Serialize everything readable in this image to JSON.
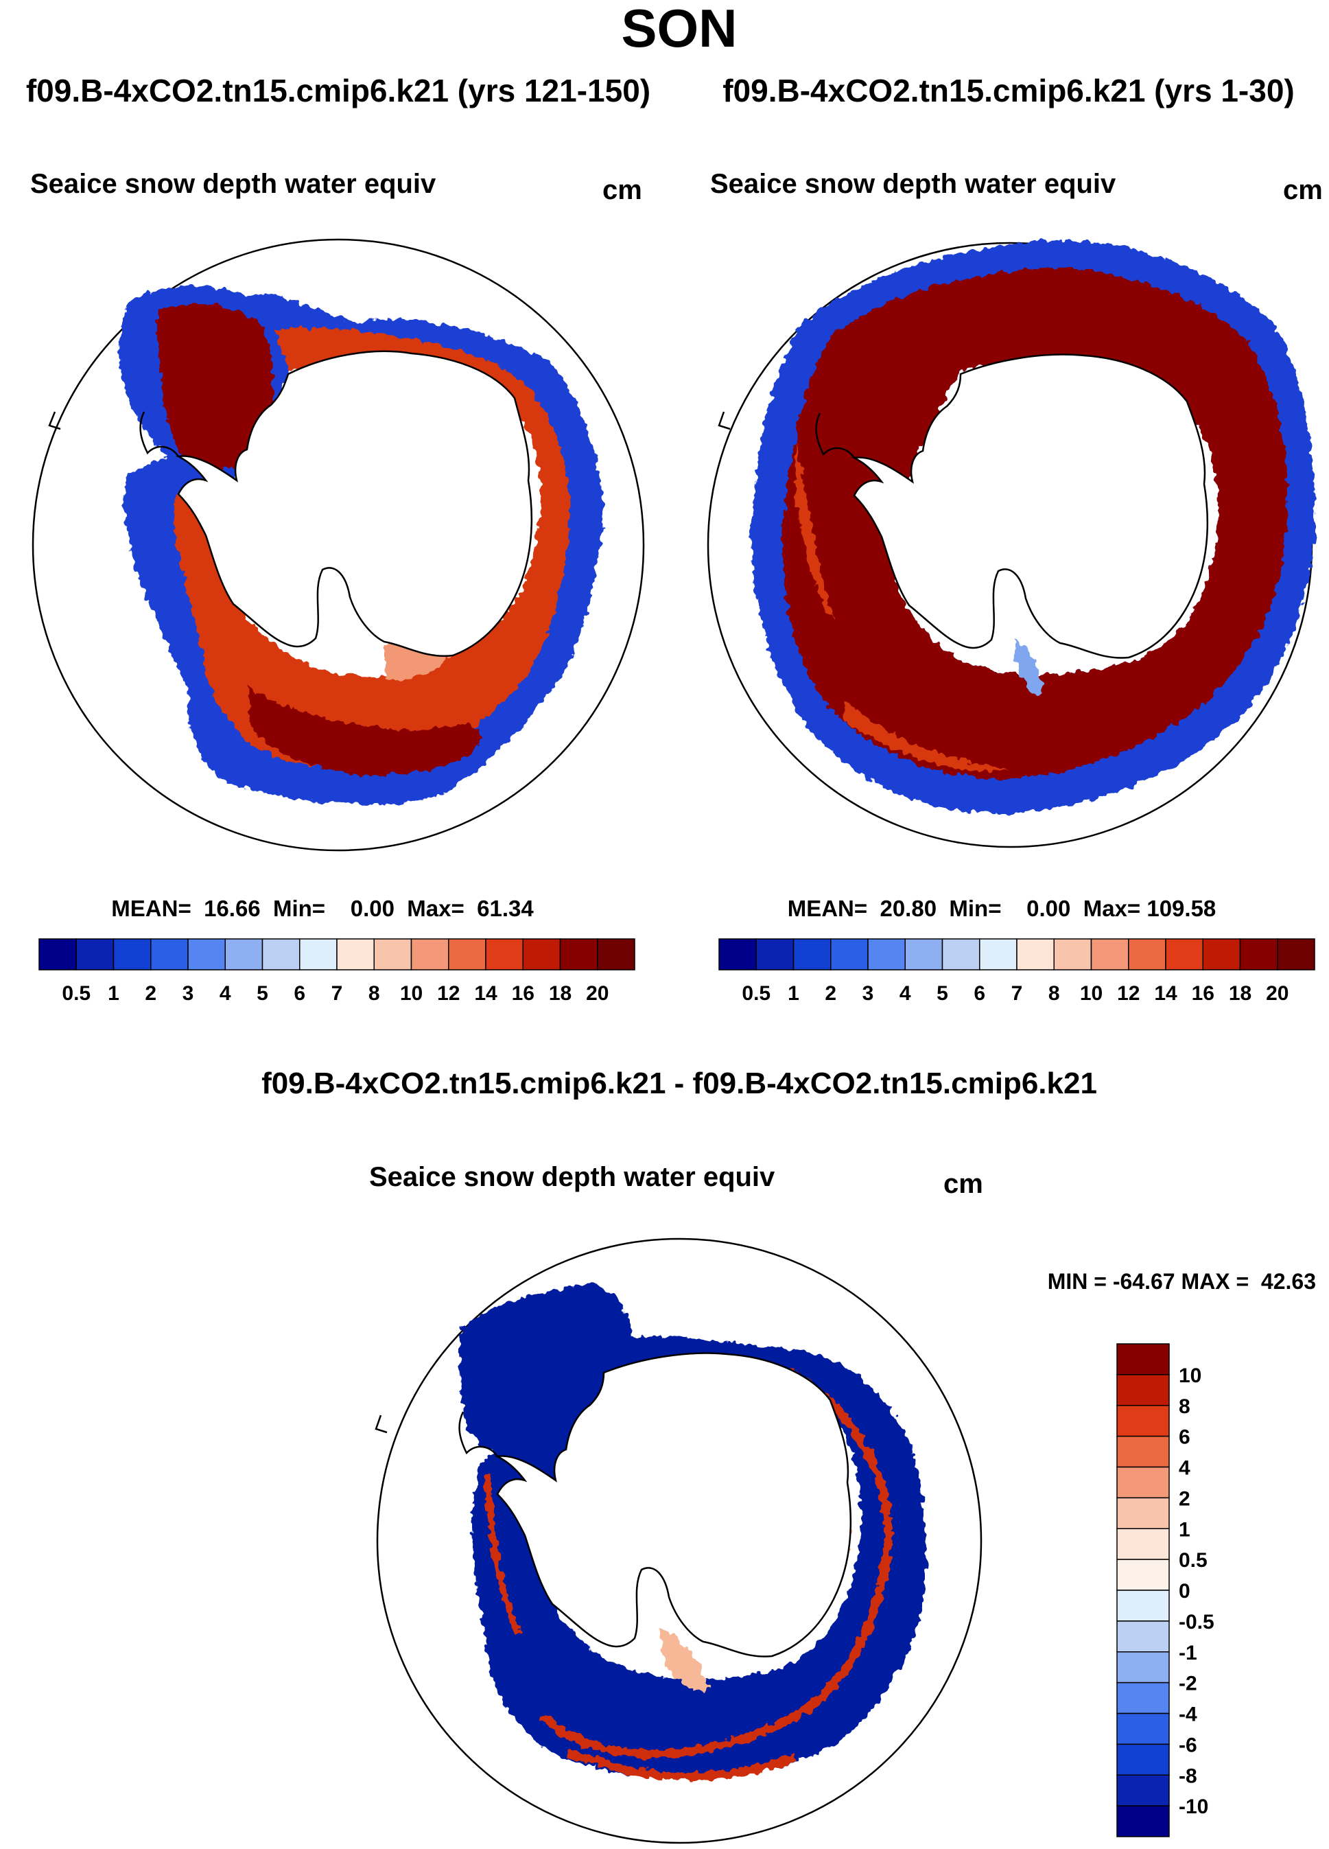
{
  "page": {
    "season": "SON",
    "diff_title": "f09.B-4xCO2.tn15.cmip6.k21 - f09.B-4xCO2.tn15.cmip6.k21"
  },
  "panels": [
    {
      "case_title": "f09.B-4xCO2.tn15.cmip6.k21 (yrs 121-150)",
      "variable": "Seaice snow depth water equiv",
      "units": "cm",
      "mean_label": "MEAN=  16.66  Min=    0.00  Max=  61.34",
      "stats": {
        "mean": 16.66,
        "min": 0.0,
        "max": 61.34
      }
    },
    {
      "case_title": "f09.B-4xCO2.tn15.cmip6.k21 (yrs 1-30)",
      "variable": "Seaice snow depth water equiv",
      "units": "cm",
      "mean_label": "MEAN=  20.80  Min=    0.00  Max= 109.58",
      "stats": {
        "mean": 20.8,
        "min": 0.0,
        "max": 109.58
      }
    }
  ],
  "difference": {
    "variable": "Seaice snow depth water equiv",
    "units": "cm",
    "minmax_label": "MIN = -64.67 MAX =  42.63",
    "stats": {
      "min": -64.67,
      "max": 42.63
    }
  },
  "colorbars": {
    "abs_labels": [
      "0.5",
      "1",
      "2",
      "3",
      "4",
      "5",
      "6",
      "7",
      "8",
      "10",
      "12",
      "14",
      "16",
      "18",
      "20"
    ],
    "abs_colors": [
      "#00008a",
      "#0a23b0",
      "#1240d2",
      "#2b5fe6",
      "#5585f0",
      "#8eaff2",
      "#bcd0f4",
      "#dfeefb",
      "#fde6d8",
      "#f8c4ac",
      "#f3997a",
      "#ec6a41",
      "#e03c17",
      "#bf1b04",
      "#860000",
      "#6e0000"
    ],
    "diff_labels": [
      "10",
      "8",
      "6",
      "4",
      "2",
      "1",
      "0.5",
      "0",
      "-0.5",
      "-1",
      "-2",
      "-4",
      "-6",
      "-8",
      "-10"
    ],
    "diff_colors": [
      "#860000",
      "#bf1b04",
      "#e03c17",
      "#ec6a41",
      "#f3997a",
      "#f8c4ac",
      "#fde6d8",
      "#fdf2ea",
      "#dfeefb",
      "#bcd0f4",
      "#8eaff2",
      "#5585f0",
      "#2b5fe6",
      "#1240d2",
      "#0a23b0",
      "#00008a"
    ]
  },
  "map_colors": {
    "ice_blue": "#1a3fd4",
    "ice_lightblue": "#7fa6ef",
    "ice_red": "#d8390f",
    "ice_darkred": "#8a0000",
    "ice_salmon": "#f29874",
    "diff_navy": "#061b9e",
    "diff_red": "#cf2e0c",
    "diff_peach": "#f7b898",
    "coast": "#000000"
  }
}
